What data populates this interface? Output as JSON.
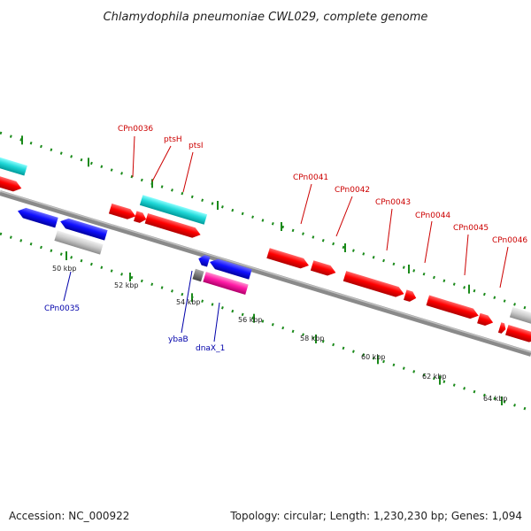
{
  "title": "Chlamydophila pneumoniae CWL029, complete genome",
  "footer": {
    "accession": "Accession: NC_000922",
    "summary": "Topology: circular; Length: 1,230,230 bp; Genes: 1,094"
  },
  "colors": {
    "backbone": "#8a8a8a",
    "tick": "#1a8a1a",
    "forward_gene": "#ff0000",
    "reverse_gene": "#0000ff",
    "rna_or_other": "#00cccc",
    "pseudo": "#c8c8c8",
    "highlight": "#ff1aa6",
    "label_forward": "#cc0000",
    "label_reverse": "#0000aa"
  },
  "scale_labels": [
    "50 kbp",
    "52 kbp",
    "54 kbp",
    "56 kbp",
    "58 kbp",
    "60 kbp",
    "62 kbp",
    "64 kbp"
  ],
  "gene_labels_forward": [
    "CPn0036",
    "ptsH",
    "ptsI",
    "CPn0041",
    "CPn0042",
    "CPn0043",
    "CPn0044",
    "CPn0045",
    "CPn0046"
  ],
  "gene_labels_reverse": [
    "CPn0035",
    "ybaB",
    "dnaX_1"
  ]
}
